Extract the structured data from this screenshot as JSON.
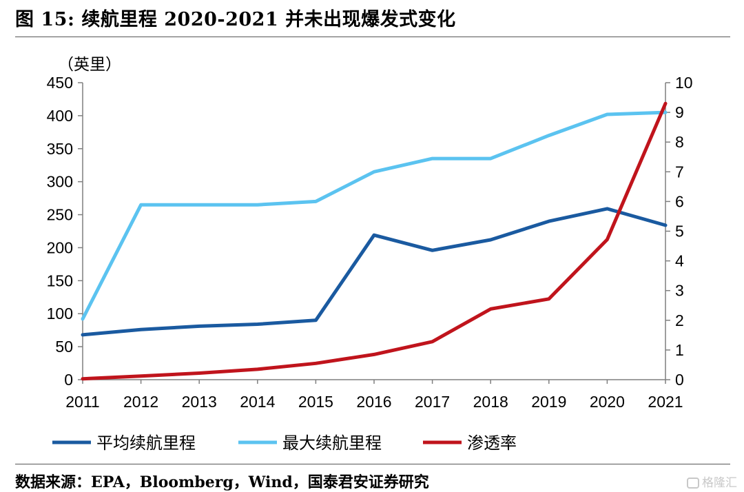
{
  "figure": {
    "title": "图 15:  续航里程 2020-2021 并未出现爆发式变化",
    "source": "数据来源：EPA，Bloomberg，Wind，国泰君安证券研究",
    "watermark": "格隆汇"
  },
  "chart_data": {
    "type": "line",
    "x": [
      "2011",
      "2012",
      "2013",
      "2014",
      "2015",
      "2016",
      "2017",
      "2018",
      "2019",
      "2020",
      "2021"
    ],
    "y_left": {
      "label": "（英里）",
      "range": [
        0,
        450
      ],
      "ticks": [
        "0",
        "50",
        "100",
        "150",
        "200",
        "250",
        "300",
        "350",
        "400",
        "450"
      ]
    },
    "y_right": {
      "label": "",
      "range": [
        0,
        10
      ],
      "ticks": [
        "0",
        "1",
        "2",
        "3",
        "4",
        "5",
        "6",
        "7",
        "8",
        "9",
        "10"
      ]
    },
    "series": [
      {
        "name": "平均续航里程",
        "axis": "left",
        "color": "#1a5aa0",
        "values": [
          68,
          76,
          81,
          84,
          90,
          219,
          196,
          212,
          240,
          259,
          234
        ]
      },
      {
        "name": "最大续航里程",
        "axis": "left",
        "color": "#5bc3f0",
        "values": [
          92,
          265,
          265,
          265,
          270,
          315,
          335,
          335,
          370,
          402,
          405
        ]
      },
      {
        "name": "渗透率",
        "axis": "right",
        "color": "#c0141c",
        "values": [
          0.03,
          0.12,
          0.22,
          0.35,
          0.55,
          0.85,
          1.28,
          2.38,
          2.72,
          4.72,
          9.3
        ]
      }
    ],
    "legend": "bottom",
    "grid": false
  }
}
